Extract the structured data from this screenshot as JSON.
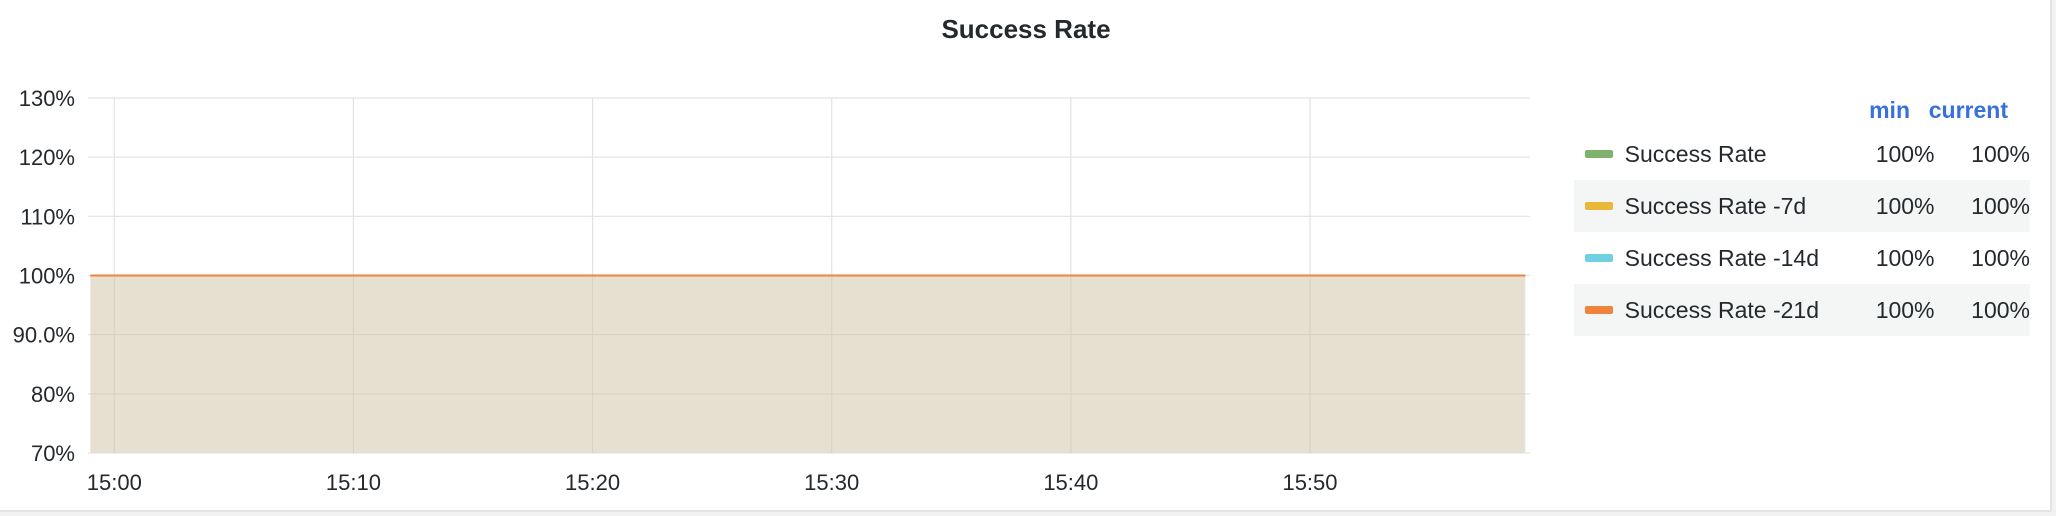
{
  "panel": {
    "title": "Success Rate"
  },
  "chart_data": {
    "type": "area",
    "title": "Success Rate",
    "xlabel": "",
    "ylabel": "",
    "y_tick_labels": [
      "130%",
      "120%",
      "110%",
      "100%",
      "90.0%",
      "80%",
      "70%"
    ],
    "y_ticks": [
      130,
      120,
      110,
      100,
      90,
      80,
      70
    ],
    "ylim": [
      70,
      130
    ],
    "x_tick_labels": [
      "15:00",
      "15:10",
      "15:20",
      "15:30",
      "15:40",
      "15:50"
    ],
    "x_ticks_minutes": [
      0,
      10,
      20,
      30,
      40,
      50
    ],
    "xlim_minutes": [
      -1.1,
      59.2
    ],
    "grid": true,
    "legend_placement": "right",
    "series": [
      {
        "name": "Success Rate",
        "color": "#7eb26d",
        "x": [
          "14:59",
          "15:59"
        ],
        "values": [
          100,
          100
        ]
      },
      {
        "name": "Success Rate -7d",
        "color": "#eab839",
        "x": [
          "14:59",
          "15:59"
        ],
        "values": [
          100,
          100
        ]
      },
      {
        "name": "Success Rate -14d",
        "color": "#6ed0e0",
        "x": [
          "14:59",
          "15:59"
        ],
        "values": [
          100,
          100
        ]
      },
      {
        "name": "Success Rate -21d",
        "color": "#ef843c",
        "x": [
          "14:59",
          "15:59"
        ],
        "values": [
          100,
          100
        ]
      }
    ],
    "area_fill_color": "#e6e0d0"
  },
  "legend": {
    "header_min": "min",
    "header_current": "current",
    "rows": [
      {
        "name": "Success Rate",
        "color": "#7eb26d",
        "min": "100%",
        "current": "100%"
      },
      {
        "name": "Success Rate -7d",
        "color": "#eab839",
        "min": "100%",
        "current": "100%"
      },
      {
        "name": "Success Rate -14d",
        "color": "#6ed0e0",
        "min": "100%",
        "current": "100%"
      },
      {
        "name": "Success Rate -21d",
        "color": "#ef843c",
        "min": "100%",
        "current": "100%"
      }
    ]
  }
}
